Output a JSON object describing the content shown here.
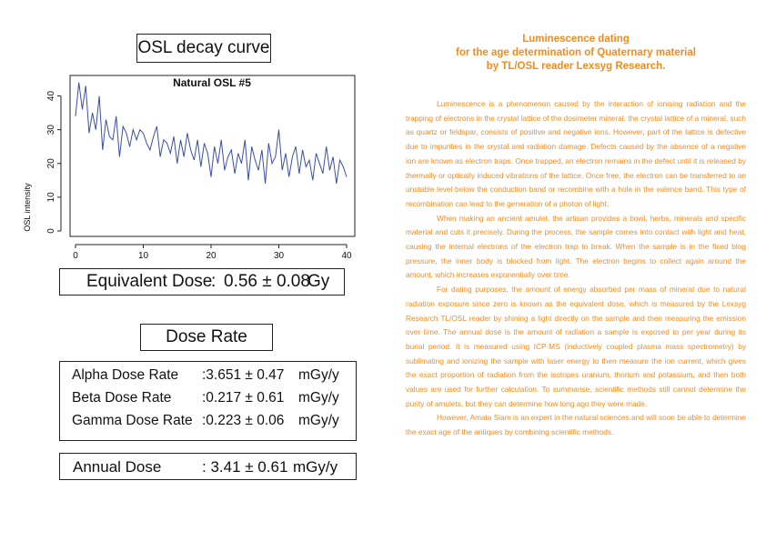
{
  "osl_section": {
    "title": "OSL decay curve"
  },
  "chart_data": {
    "type": "line",
    "title": "Natural OSL #5",
    "xlabel": "",
    "ylabel": "OSL intensity",
    "xlim": [
      0,
      40
    ],
    "ylim": [
      0,
      45
    ],
    "x_ticks": [
      "0",
      "10",
      "20",
      "30",
      "40"
    ],
    "y_ticks": [
      "0",
      "10",
      "20",
      "30",
      "40"
    ],
    "grid": false,
    "series_color": "#3b4fa0",
    "x": [
      0,
      0.5,
      1,
      1.5,
      2,
      2.5,
      3,
      3.5,
      4,
      4.5,
      5,
      5.5,
      6,
      6.5,
      7,
      7.5,
      8,
      8.5,
      9,
      9.5,
      10,
      10.5,
      11,
      11.5,
      12,
      12.5,
      13,
      13.5,
      14,
      14.5,
      15,
      15.5,
      16,
      16.5,
      17,
      17.5,
      18,
      18.5,
      19,
      19.5,
      20,
      20.5,
      21,
      21.5,
      22,
      22.5,
      23,
      23.5,
      24,
      24.5,
      25,
      25.5,
      26,
      26.5,
      27,
      27.5,
      28,
      28.5,
      29,
      29.5,
      30,
      30.5,
      31,
      31.5,
      32,
      32.5,
      33,
      33.5,
      34,
      34.5,
      35,
      35.5,
      36,
      36.5,
      37,
      37.5,
      38,
      38.5,
      39,
      39.5,
      40
    ],
    "y": [
      34,
      44,
      36,
      43,
      29,
      35,
      30,
      40,
      24,
      33,
      28,
      27,
      34,
      22,
      31,
      29,
      25,
      30,
      27,
      30,
      29,
      26,
      24,
      28,
      31,
      22,
      27,
      26,
      23,
      28,
      20,
      27,
      22,
      29,
      24,
      21,
      27,
      19,
      26,
      23,
      16,
      25,
      20,
      27,
      18,
      22,
      24,
      17,
      23,
      20,
      27,
      15,
      25,
      21,
      18,
      24,
      14,
      26,
      20,
      22,
      30,
      18,
      23,
      16,
      22,
      25,
      17,
      24,
      19,
      21,
      15,
      23,
      20,
      17,
      25,
      18,
      22,
      14,
      21,
      19,
      16
    ]
  },
  "equivalent_dose": {
    "label": "Equivalent Dose",
    "separator": ":",
    "value": "0.56 ± 0.08",
    "unit": "Gy"
  },
  "dose_rate_section": {
    "title": "Dose Rate",
    "rows": [
      {
        "label": "Alpha Dose Rate",
        "value": ":3.651 ± 0.47",
        "unit": "mGy/y"
      },
      {
        "label": "Beta Dose Rate",
        "value": ":0.217 ± 0.61",
        "unit": "mGy/y"
      },
      {
        "label": "Gamma Dose Rate",
        "value": ":0.223 ± 0.06",
        "unit": "mGy/y"
      }
    ]
  },
  "annual_dose": {
    "label": "Annual Dose",
    "value": ": 3.41 ± 0.61",
    "unit": "mGy/y"
  },
  "article": {
    "title_line1": "Luminescence dating",
    "title_line2": "for the age determination of Quaternary material",
    "title_line3": "by TL/OSL reader Lexsyg Research.",
    "paragraphs": [
      "Luminescence is a phenomenon caused by the interaction of ionising radiation and the trapping of electrons in the crystal lattice of the dosimeter mineral. the crystal lattice of a mineral, such as quartz or feldspar, consists of positive and negative ions. However, part of the lattice is defective due to impurities in the crystal and radiation damage. Defects caused by the absence of a negative ion are known as electron traps. Once trapped, an electron remains in the defect until it is released by thermally or optically induced vibrations of the lattice. Once free, the electron can be transferred to an unstable level below the conduction band or recombine with a hole in the valence band. This type of recombination can lead to the generation of a photon of light.",
      "When making an ancient amulet, the artisan provides a bowl, herbs, minerals and specific material and cuts it precisely. During the process, the sample comes into contact with light and heat, causing the internal electrons of the electron trap to break. When the sample is in the fixed blog pressure, the inner body is blocked from light. The electron begins to collect again around the amount, which increases exponentially over time.",
      "For dating purposes, the amount of energy absorbed per mass of mineral due to natural radiation exposure since zero is known as the equivalent dose, which is measured by the Lexsyg Research TL/OSL reader by shining a light directly on the sample and then measuring the emission over time. The annual dose is the amount of radiation a sample is exposed to per year during its burial period. It is measured using ICP-MS (inductively coupled plasma mass spectrometry) by sublimating and ionizing the sample with laser energy to then measure the ion current, which gives the exact proportion of radiation from the isotopes uranium, thorium and potassium, and then both values are used for further calculation. To summarise, scientific methods still cannot determine the purity of amulets, but they can determine how long ago they were made.",
      "However, Amata Siam is an expert in the natural sciences and will soon be able to determine the exact age of the antiques by combining scientific methods."
    ]
  }
}
